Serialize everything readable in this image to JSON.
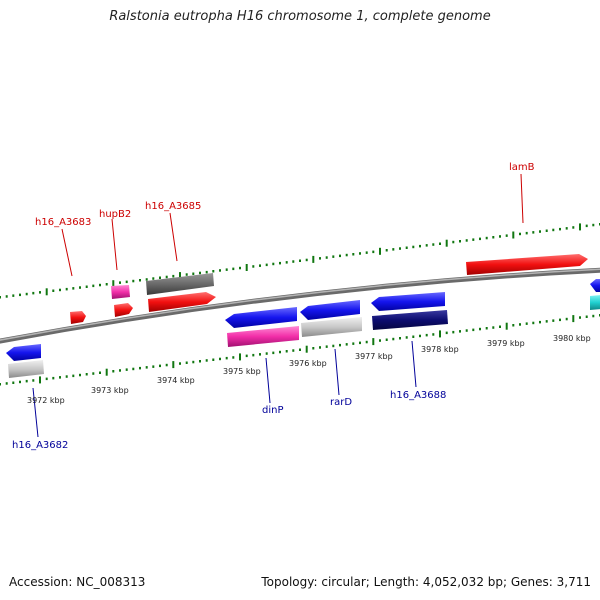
{
  "title": "Ralstonia eutropha H16 chromosome 1, complete genome",
  "footer": {
    "accession": "Accession: NC_008313",
    "summary": "Topology: circular; Length: 4,052,032 bp; Genes: 3,711"
  },
  "colors": {
    "forward_label": "#cc0000",
    "reverse_label": "#000099",
    "tick": "#117711",
    "backbone": "#888888"
  },
  "ticks": [
    "3972 kbp",
    "3973 kbp",
    "3974 kbp",
    "3975 kbp",
    "3976 kbp",
    "3977 kbp",
    "3978 kbp",
    "3979 kbp",
    "3980 kbp"
  ],
  "labels": {
    "forward": [
      "h16_A3683",
      "hupB2",
      "h16_A3685",
      "lamB"
    ],
    "reverse": [
      "h16_A3682",
      "dinP",
      "rarD",
      "h16_A3688"
    ]
  }
}
